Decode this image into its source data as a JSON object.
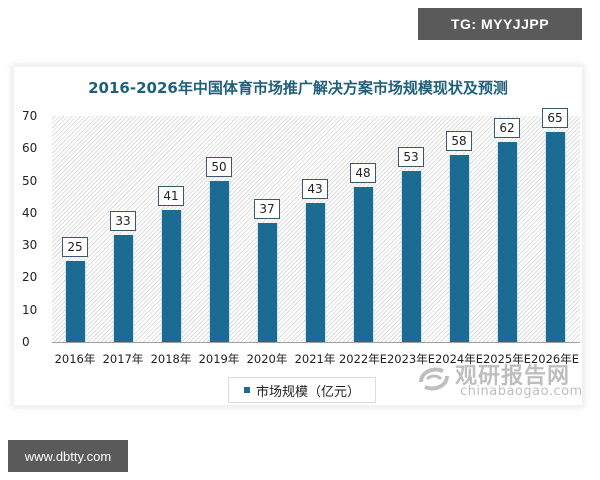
{
  "badges": {
    "tg": "TG: MYYJJPP",
    "url": "www.dbtty.com"
  },
  "watermark": {
    "cn": "观研报告网",
    "en": "chinabaogao.com",
    "icon": "chinabaogao-logo-icon"
  },
  "colors": {
    "bar": "#1c6b93",
    "title": "#1f5f7a",
    "badge_bg": "#5a5a5a"
  },
  "chart_data": {
    "type": "bar",
    "title": "2016-2026年中国体育市场推广解决方案市场规模现状及预测",
    "xlabel": "",
    "ylabel": "",
    "ylim": [
      0,
      70
    ],
    "yticks": [
      0,
      10,
      20,
      30,
      40,
      50,
      60,
      70
    ],
    "grid": false,
    "legend_position": "bottom",
    "categories": [
      "2016年",
      "2017年",
      "2018年",
      "2019年",
      "2020年",
      "2021年",
      "2022年E",
      "2023年E",
      "2024年E",
      "2025年E",
      "2026年E"
    ],
    "series": [
      {
        "name": "市场规模（亿元）",
        "values": [
          25,
          33,
          41,
          50,
          37,
          43,
          48,
          53,
          58,
          62,
          65
        ]
      }
    ]
  }
}
